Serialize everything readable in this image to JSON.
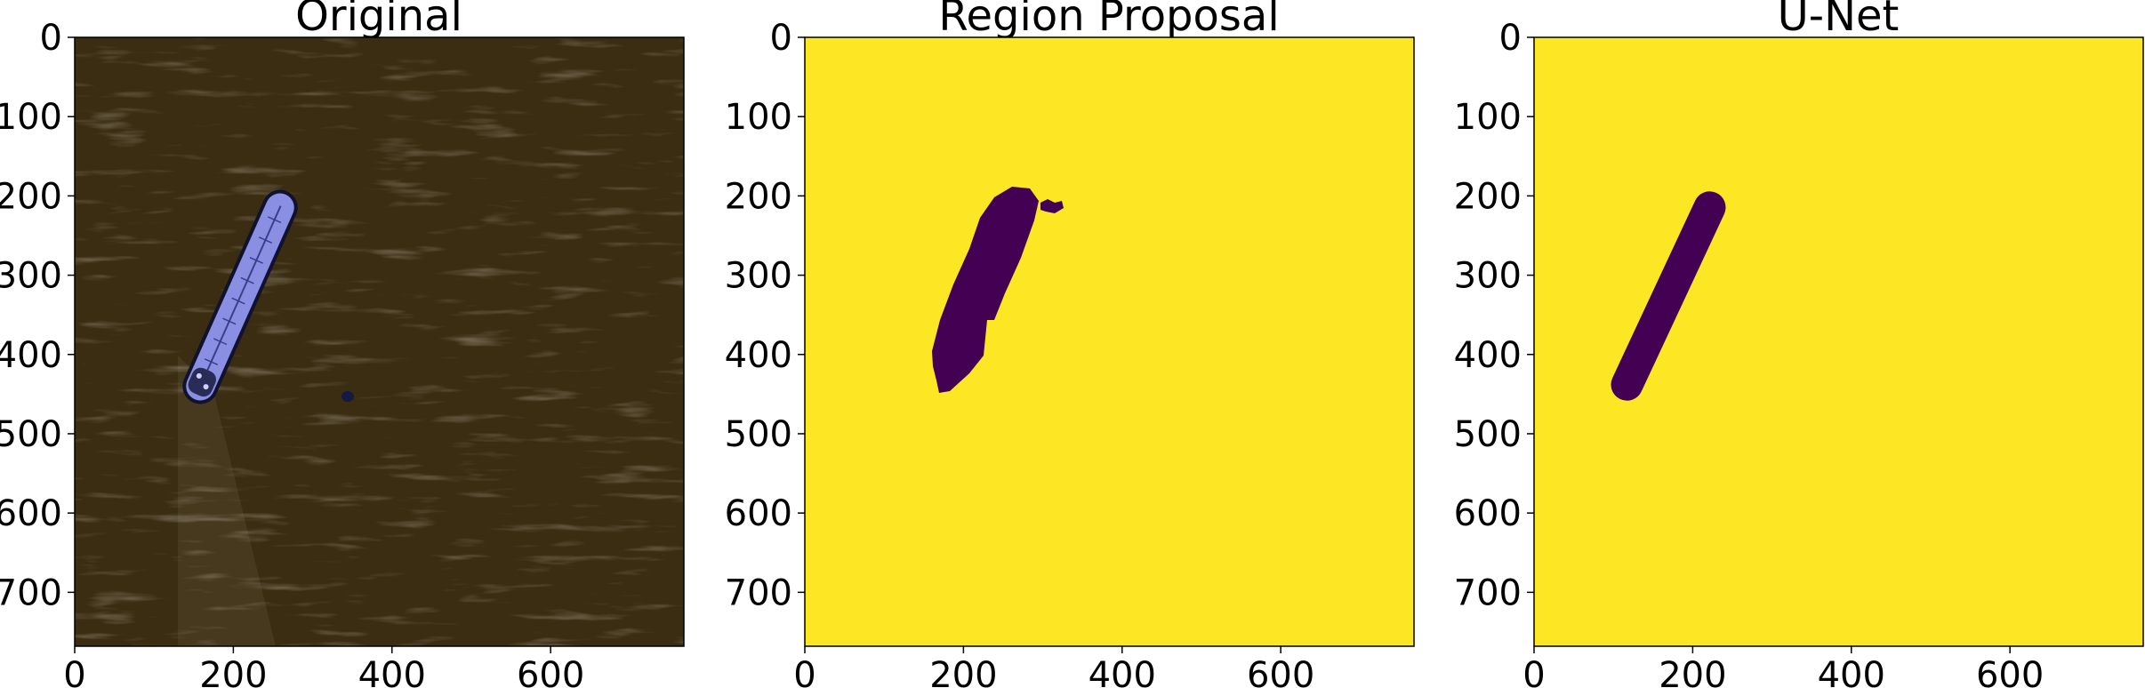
{
  "panels": [
    {
      "title": "Original",
      "image_desc_icon": "satellite-ocean-ship-image",
      "xticks": [
        0,
        200,
        400,
        600
      ],
      "yticks": [
        0,
        100,
        200,
        300,
        400,
        500,
        600,
        700
      ],
      "xlim": [
        0,
        768
      ],
      "ylim": [
        768,
        0
      ]
    },
    {
      "title": "Region Proposal",
      "image_desc_icon": "segmentation-mask-image",
      "xticks": [
        0,
        200,
        400,
        600
      ],
      "yticks": [
        0,
        100,
        200,
        300,
        400,
        500,
        600,
        700
      ],
      "xlim": [
        0,
        768
      ],
      "ylim": [
        768,
        0
      ]
    },
    {
      "title": "U-Net",
      "image_desc_icon": "segmentation-mask-image",
      "xticks": [
        0,
        200,
        400,
        600
      ],
      "yticks": [
        0,
        100,
        200,
        300,
        400,
        500,
        600,
        700
      ],
      "xlim": [
        0,
        768
      ],
      "ylim": [
        768,
        0
      ]
    }
  ],
  "colors": {
    "ocean": "#3b2d12",
    "ship": "#8a8fe4",
    "mask_background": "#fde725",
    "mask_object": "#440154"
  }
}
